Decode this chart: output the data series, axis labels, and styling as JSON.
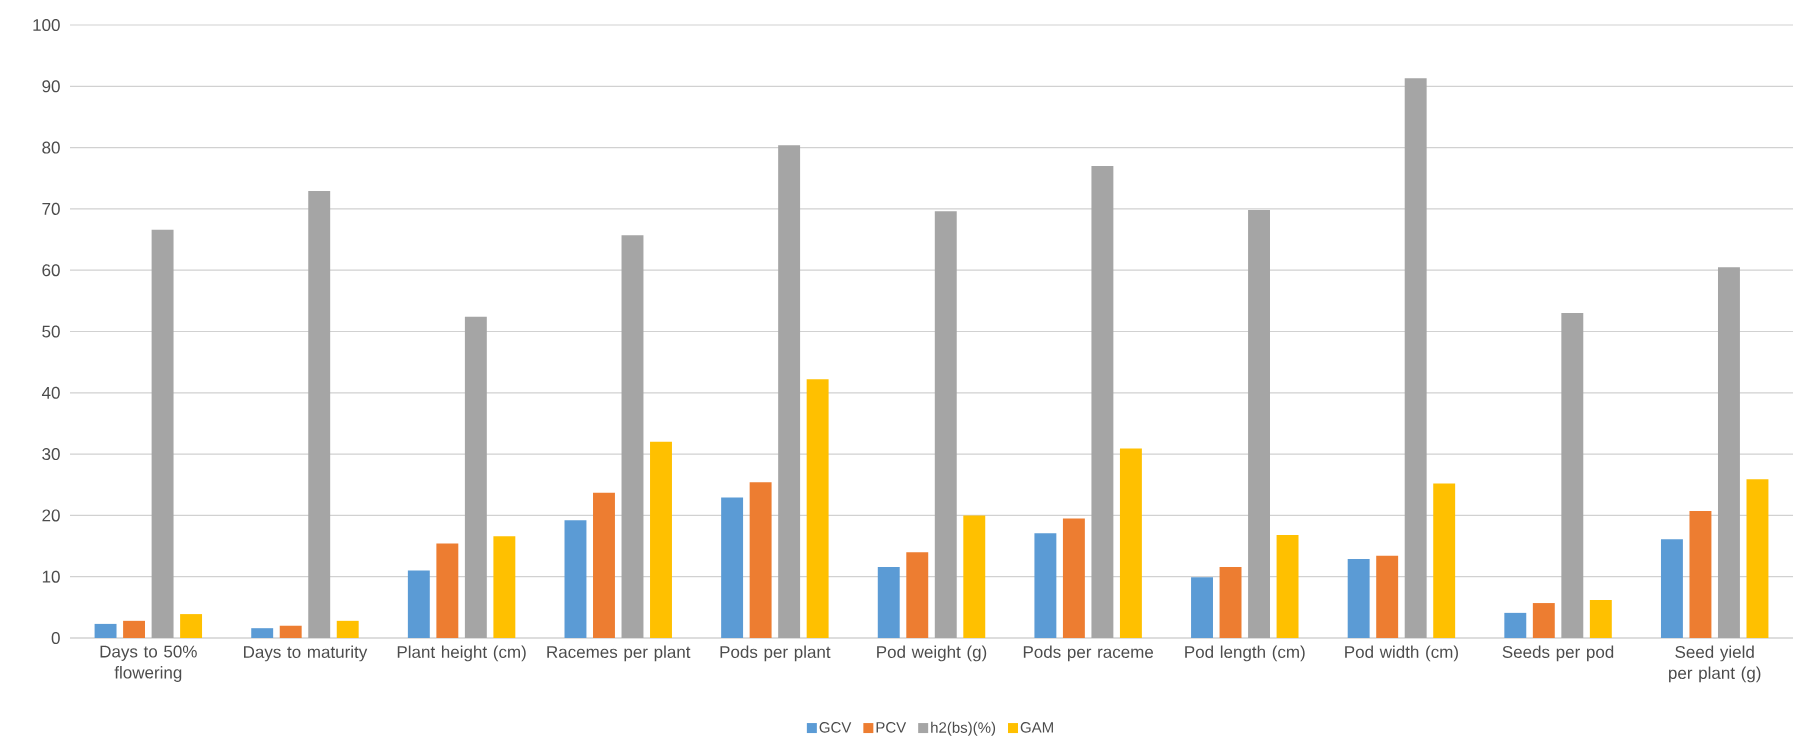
{
  "chart_data": {
    "type": "bar",
    "categories": [
      "Days to 50% flowering",
      "Days to maturity",
      "Plant height (cm)",
      "Racemes per plant",
      "Pods per plant",
      "Pod weight (g)",
      "Pods per raceme",
      "Pod length (cm)",
      "Pod width (cm)",
      "Seeds per pod",
      "Seed yield per plant (g)"
    ],
    "series": [
      {
        "name": "GCV",
        "color": "#5b9bd5",
        "values": [
          2.3,
          1.6,
          11.0,
          19.2,
          22.9,
          11.6,
          17.1,
          9.9,
          12.9,
          4.1,
          16.1
        ]
      },
      {
        "name": "PCV",
        "color": "#ed7d31",
        "values": [
          2.8,
          2.0,
          15.4,
          23.7,
          25.4,
          14.0,
          19.5,
          11.6,
          13.4,
          5.7,
          20.7
        ]
      },
      {
        "name": "h2(bs)(%)",
        "color": "#a5a5a5",
        "values": [
          66.6,
          72.9,
          52.4,
          65.7,
          80.4,
          69.6,
          77.0,
          69.8,
          91.3,
          53.0,
          60.5
        ]
      },
      {
        "name": "GAM",
        "color": "#ffc000",
        "values": [
          3.9,
          2.8,
          16.6,
          32.0,
          42.2,
          20.0,
          30.9,
          16.8,
          25.2,
          6.2,
          25.9
        ]
      }
    ],
    "ylim": [
      0,
      100
    ],
    "yticks": [
      0,
      10,
      20,
      30,
      40,
      50,
      60,
      70,
      80,
      90,
      100
    ],
    "grid": "y",
    "legend": "bottom"
  }
}
